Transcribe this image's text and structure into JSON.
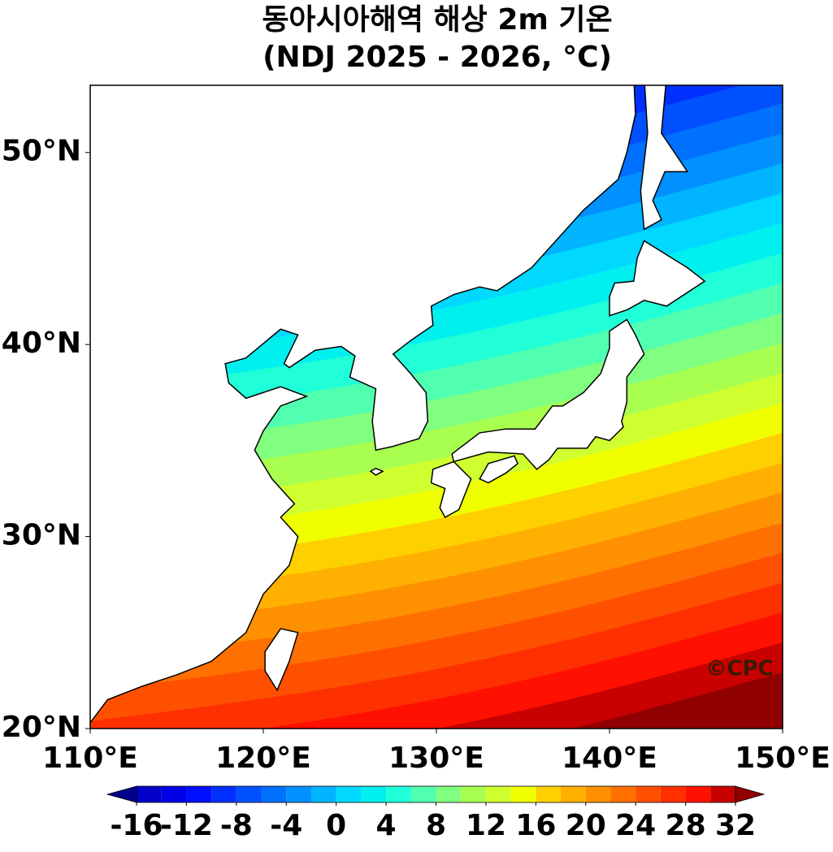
{
  "title": [
    "동아시아해역 해상 2m 기온",
    "(NDJ 2025 - 2026, °C)"
  ],
  "xlim": [
    110,
    150
  ],
  "ylim": [
    20,
    53.5
  ],
  "xticks": [
    {
      "value": 110,
      "label": "110°E"
    },
    {
      "value": 120,
      "label": "120°E"
    },
    {
      "value": 130,
      "label": "130°E"
    },
    {
      "value": 140,
      "label": "140°E"
    },
    {
      "value": 150,
      "label": "150°E"
    }
  ],
  "yticks": [
    {
      "value": 20,
      "label": "20°N"
    },
    {
      "value": 30,
      "label": "30°N"
    },
    {
      "value": 40,
      "label": "40°N"
    },
    {
      "value": 50,
      "label": "50°N"
    }
  ],
  "watermark": "©CPC",
  "colorbar": {
    "levels": [
      -16,
      -14,
      -12,
      -10,
      -8,
      -6,
      -4,
      -2,
      0,
      2,
      4,
      6,
      8,
      10,
      12,
      14,
      16,
      18,
      20,
      22,
      24,
      26,
      28,
      30,
      32
    ],
    "colors": [
      "#0000c8",
      "#0000e6",
      "#0010ff",
      "#0030ff",
      "#0050ff",
      "#0070ff",
      "#0090ff",
      "#00b4ff",
      "#00d8ff",
      "#00f0f0",
      "#20ffd8",
      "#50ffb0",
      "#80ff80",
      "#a8ff50",
      "#d0ff30",
      "#f0ff00",
      "#ffd000",
      "#ffb000",
      "#ff9000",
      "#ff7000",
      "#ff5000",
      "#ff3000",
      "#ff1000",
      "#c80000"
    ],
    "under_color": "#00008c",
    "over_color": "#900000",
    "ticks": [
      -16,
      -12,
      -8,
      -4,
      0,
      4,
      8,
      12,
      16,
      20,
      24,
      28,
      32
    ]
  }
}
